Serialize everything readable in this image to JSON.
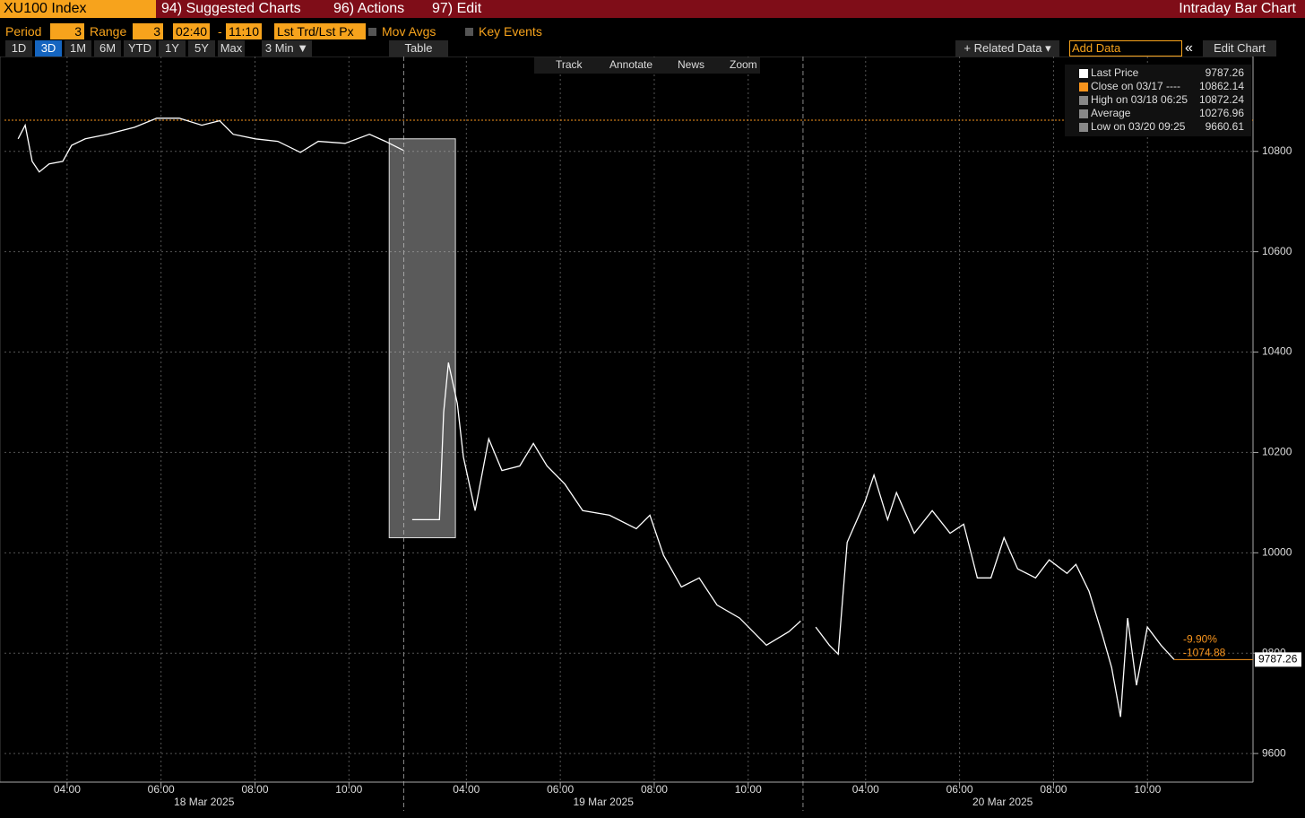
{
  "header": {
    "ticker": "XU100 Index",
    "menus": [
      "94) Suggested Charts",
      "96) Actions",
      "97) Edit"
    ],
    "title": "Intraday Bar Chart"
  },
  "toolbar": {
    "period_label": "Period",
    "period": "3",
    "range_label": "Range",
    "range": "3",
    "start": "02:40",
    "dash": "-",
    "end": "11:10",
    "field": "Lst Trd/Lst Px",
    "mov_avgs": "Mov Avgs",
    "key_events": "Key Events"
  },
  "range_buttons": [
    "1D",
    "3D",
    "1M",
    "6M",
    "YTD",
    "1Y",
    "5Y",
    "Max"
  ],
  "range_active": 1,
  "interval": "3 Min ▼",
  "table": "Table",
  "related_data": "+ Related Data ▾",
  "add_data": "Add Data",
  "collapse": "«",
  "edit_chart": "Edit Chart",
  "chart_tools": [
    "Track",
    "Annotate",
    "News",
    "Zoom"
  ],
  "chart_data": {
    "type": "line",
    "series": [
      {
        "name": "Last Price",
        "color": "#ffffff",
        "last": 9787.26,
        "x": [
          0.29,
          0.44,
          0.59,
          0.74,
          0.95,
          1.24,
          1.43,
          1.72,
          2.19,
          2.77,
          3.24,
          3.72,
          4.2,
          4.58,
          4.87,
          5.34,
          5.82,
          6.3,
          6.68,
          7.25,
          7.77,
          8.11,
          8.49,
          null,
          8.68,
          9.26,
          9.35,
          9.45,
          9.64,
          9.77,
          10.02,
          10.31,
          10.59,
          10.97,
          11.26,
          11.55,
          11.93,
          12.31,
          12.88,
          13.45,
          13.74,
          14.03,
          14.41,
          14.79,
          15.17,
          15.65,
          16.22,
          16.7,
          16.95,
          null,
          17.27,
          17.56,
          17.75,
          17.94,
          18.32,
          18.51,
          18.8,
          18.99,
          19.37,
          19.75,
          20.13,
          20.42,
          20.71,
          21.0,
          21.28,
          21.57,
          21.95,
          22.24,
          22.62,
          22.81,
          23.09,
          23.38,
          23.57,
          23.76,
          23.91,
          24.1,
          24.33,
          24.62,
          24.9
        ],
        "values": [
          10825,
          10852,
          10780,
          10759,
          10775,
          10780,
          10812,
          10825,
          10834,
          10848,
          10866,
          10866,
          10852,
          10861,
          10834,
          10825,
          10820,
          10798,
          10820,
          10816,
          10834,
          10820,
          10802,
          null,
          10066,
          10066,
          10280,
          10379,
          10298,
          10191,
          10084,
          10227,
          10164,
          10173,
          10218,
          10173,
          10137,
          10084,
          10075,
          10048,
          10075,
          9995,
          9932,
          9950,
          9896,
          9870,
          9816,
          9843,
          9864,
          null,
          9852,
          9816,
          9798,
          10021,
          10102,
          10155,
          10066,
          10120,
          10039,
          10084,
          10039,
          10057,
          9950,
          9950,
          10030,
          9968,
          9950,
          9986,
          9959,
          9977,
          9923,
          9834,
          9771,
          9673,
          9870,
          9736,
          9852,
          9816,
          9787.26
        ]
      }
    ],
    "stats": [
      {
        "name": "Close on 03/17 ----",
        "value": 10862.14,
        "color": "#f7941d"
      },
      {
        "name": "High on 03/18 06:25",
        "value": 10872.24
      },
      {
        "name": "Average",
        "value": 10276.96
      },
      {
        "name": "Low on 03/20 09:25",
        "value": 9660.61
      }
    ],
    "change_pct": {
      "value": -9.9,
      "label": "-9.90%"
    },
    "change": -1074.88,
    "highlight": {
      "x": [
        8.19,
        9.6
      ],
      "y": [
        10030,
        10825
      ]
    },
    "xlim": [
      0,
      26.58
    ],
    "ylim": [
      9543,
      10989
    ],
    "yticks": [
      9600,
      9800,
      10000,
      10200,
      10400,
      10600,
      10800
    ],
    "xticks": [
      {
        "value": 1.333,
        "label": "04:00"
      },
      {
        "value": 3.333,
        "label": "06:00"
      },
      {
        "value": 5.333,
        "label": "08:00"
      },
      {
        "value": 7.333,
        "label": "10:00"
      },
      {
        "value": 9.833,
        "label": "04:00"
      },
      {
        "value": 11.833,
        "label": "06:00"
      },
      {
        "value": 13.833,
        "label": "08:00"
      },
      {
        "value": 15.833,
        "label": "10:00"
      },
      {
        "value": 18.333,
        "label": "04:00"
      },
      {
        "value": 20.333,
        "label": "06:00"
      },
      {
        "value": 22.333,
        "label": "08:00"
      },
      {
        "value": 24.333,
        "label": "10:00"
      }
    ],
    "date_labels": [
      {
        "value": 4.25,
        "label": "18 Mar 2025"
      },
      {
        "value": 12.75,
        "label": "19 Mar 2025"
      },
      {
        "value": 21.25,
        "label": "20 Mar 2025"
      }
    ],
    "day_breaks": [
      8.5,
      17
    ],
    "grid": true,
    "legend": "upper right"
  }
}
